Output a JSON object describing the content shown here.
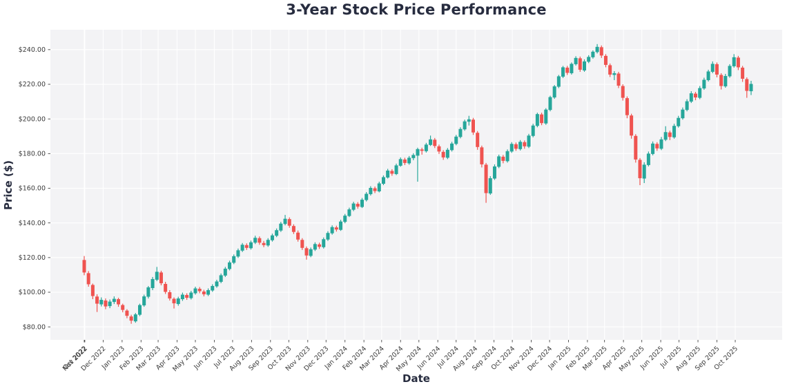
{
  "title": "3-Year Stock Price Performance",
  "chart_data": {
    "type": "candlestick",
    "title": "3-Year Stock Price Performance",
    "xlabel": "Date",
    "ylabel": "Price ($)",
    "interval": "weekly",
    "start_date": "2022-10-31",
    "end_date": "2025-10-27",
    "n_candles": 157,
    "ylim": [
      72.5,
      251.5
    ],
    "grid": true,
    "colors": {
      "up": "#26a69a",
      "down": "#ef5350",
      "plot_bg": "#f3f3f5",
      "grid": "#ffffff",
      "tick": "#444444",
      "tick_text": "#3a3a3a",
      "text": "#272c3f"
    },
    "y_ticks": [
      {
        "label": "$240.00",
        "value": 240
      },
      {
        "label": "$220.00",
        "value": 220
      },
      {
        "label": "$200.00",
        "value": 200
      },
      {
        "label": "$180.00",
        "value": 180
      },
      {
        "label": "$160.00",
        "value": 160
      },
      {
        "label": "$140.00",
        "value": 140
      },
      {
        "label": "$120.00",
        "value": 120
      },
      {
        "label": "$100.00",
        "value": 100
      },
      {
        "label": "$80.00",
        "value": 80
      }
    ],
    "x_ticks": [
      {
        "label": "Oct 2022",
        "week": 0
      },
      {
        "label": "Nov 2022",
        "week": 0.14
      },
      {
        "label": "Dec 2022",
        "week": 4.43
      },
      {
        "label": "Jan 2023",
        "week": 8.86
      },
      {
        "label": "Feb 2023",
        "week": 13.29
      },
      {
        "label": "Mar 2023",
        "week": 17.29
      },
      {
        "label": "Apr 2023",
        "week": 21.71
      },
      {
        "label": "May 2023",
        "week": 26.0
      },
      {
        "label": "Jun 2023",
        "week": 30.43
      },
      {
        "label": "Jul 2023",
        "week": 34.71
      },
      {
        "label": "Aug 2023",
        "week": 39.14
      },
      {
        "label": "Sep 2023",
        "week": 43.57
      },
      {
        "label": "Oct 2023",
        "week": 47.86
      },
      {
        "label": "Nov 2023",
        "week": 52.29
      },
      {
        "label": "Dec 2023",
        "week": 56.57
      },
      {
        "label": "Jan 2024",
        "week": 61.0
      },
      {
        "label": "Feb 2024",
        "week": 65.43
      },
      {
        "label": "Mar 2024",
        "week": 69.57
      },
      {
        "label": "Apr 2024",
        "week": 74.0
      },
      {
        "label": "May 2024",
        "week": 78.29
      },
      {
        "label": "Jun 2024",
        "week": 82.71
      },
      {
        "label": "Jul 2024",
        "week": 87.0
      },
      {
        "label": "Aug 2024",
        "week": 91.43
      },
      {
        "label": "Sep 2024",
        "week": 95.86
      },
      {
        "label": "Oct 2024",
        "week": 100.14
      },
      {
        "label": "Nov 2024",
        "week": 104.57
      },
      {
        "label": "Dec 2024",
        "week": 108.86
      },
      {
        "label": "Jan 2025",
        "week": 113.29
      },
      {
        "label": "Feb 2025",
        "week": 117.71
      },
      {
        "label": "Mar 2025",
        "week": 121.71
      },
      {
        "label": "Apr 2025",
        "week": 126.14
      },
      {
        "label": "May 2025",
        "week": 130.43
      },
      {
        "label": "Jun 2025",
        "week": 134.86
      },
      {
        "label": "Jul 2025",
        "week": 139.14
      },
      {
        "label": "Aug 2025",
        "week": 143.57
      },
      {
        "label": "Sep 2025",
        "week": 148.0
      },
      {
        "label": "Oct 2025",
        "week": 152.29
      }
    ],
    "candles": [
      [
        118.6,
        120.9,
        109.8,
        111.4
      ],
      [
        111.0,
        112.2,
        103.2,
        104.6
      ],
      [
        104.2,
        105.0,
        96.0,
        97.8
      ],
      [
        97.5,
        98.8,
        88.6,
        93.4
      ],
      [
        93.0,
        97.0,
        91.8,
        95.6
      ],
      [
        95.2,
        96.4,
        90.2,
        91.8
      ],
      [
        92.0,
        95.8,
        90.8,
        94.6
      ],
      [
        94.4,
        97.6,
        93.2,
        96.2
      ],
      [
        96.0,
        96.8,
        91.6,
        93.0
      ],
      [
        92.6,
        93.4,
        88.4,
        89.8
      ],
      [
        89.4,
        90.2,
        85.0,
        86.4
      ],
      [
        86.0,
        87.0,
        81.8,
        83.6
      ],
      [
        83.2,
        88.0,
        82.4,
        87.2
      ],
      [
        87.0,
        93.4,
        86.2,
        92.6
      ],
      [
        92.4,
        98.6,
        91.6,
        97.6
      ],
      [
        97.4,
        103.6,
        96.4,
        102.8
      ],
      [
        102.4,
        108.8,
        101.2,
        107.6
      ],
      [
        107.2,
        114.6,
        106.4,
        111.8
      ],
      [
        111.4,
        112.4,
        104.0,
        105.2
      ],
      [
        104.8,
        106.0,
        99.0,
        100.2
      ],
      [
        100.0,
        101.2,
        95.2,
        96.4
      ],
      [
        96.2,
        97.0,
        90.6,
        93.6
      ],
      [
        93.2,
        97.4,
        92.2,
        96.4
      ],
      [
        96.0,
        99.8,
        95.0,
        98.6
      ],
      [
        98.4,
        99.4,
        95.6,
        96.8
      ],
      [
        96.6,
        100.8,
        95.8,
        99.8
      ],
      [
        99.4,
        103.2,
        98.6,
        102.2
      ],
      [
        102.0,
        103.0,
        99.4,
        100.6
      ],
      [
        100.4,
        101.4,
        97.6,
        98.8
      ],
      [
        98.6,
        102.2,
        97.8,
        101.2
      ],
      [
        101.0,
        104.6,
        100.2,
        103.6
      ],
      [
        103.4,
        107.2,
        102.6,
        106.2
      ],
      [
        106.0,
        110.8,
        105.2,
        109.8
      ],
      [
        109.6,
        114.6,
        108.8,
        113.6
      ],
      [
        113.4,
        118.2,
        112.6,
        117.2
      ],
      [
        117.0,
        121.8,
        116.2,
        120.8
      ],
      [
        120.6,
        125.2,
        119.8,
        124.2
      ],
      [
        124.0,
        128.4,
        123.2,
        127.4
      ],
      [
        127.2,
        128.2,
        124.4,
        125.6
      ],
      [
        125.4,
        129.8,
        124.6,
        128.8
      ],
      [
        128.6,
        132.6,
        127.8,
        131.4
      ],
      [
        131.2,
        132.2,
        127.4,
        128.6
      ],
      [
        128.4,
        129.6,
        126.0,
        127.2
      ],
      [
        127.0,
        131.2,
        126.2,
        130.2
      ],
      [
        130.0,
        133.8,
        129.2,
        132.8
      ],
      [
        132.6,
        136.8,
        131.8,
        135.8
      ],
      [
        135.6,
        140.6,
        134.8,
        139.6
      ],
      [
        139.4,
        144.6,
        138.6,
        142.4
      ],
      [
        142.2,
        143.2,
        137.2,
        138.4
      ],
      [
        138.2,
        139.2,
        133.6,
        134.8
      ],
      [
        134.4,
        135.6,
        129.2,
        130.4
      ],
      [
        130.2,
        131.2,
        124.4,
        125.6
      ],
      [
        125.4,
        126.4,
        118.8,
        121.2
      ],
      [
        121.0,
        125.8,
        120.2,
        124.8
      ],
      [
        124.6,
        128.8,
        123.8,
        127.8
      ],
      [
        127.6,
        128.6,
        125.0,
        126.2
      ],
      [
        126.0,
        131.6,
        125.2,
        130.6
      ],
      [
        130.4,
        135.2,
        129.6,
        134.2
      ],
      [
        134.0,
        138.6,
        133.2,
        137.6
      ],
      [
        137.4,
        138.4,
        135.0,
        136.2
      ],
      [
        136.0,
        141.8,
        135.4,
        140.8
      ],
      [
        140.6,
        145.2,
        139.8,
        144.2
      ],
      [
        144.0,
        148.8,
        143.4,
        147.8
      ],
      [
        147.6,
        152.2,
        146.8,
        151.2
      ],
      [
        151.0,
        152.0,
        148.2,
        149.4
      ],
      [
        149.2,
        154.4,
        148.6,
        153.4
      ],
      [
        153.2,
        157.8,
        152.4,
        156.8
      ],
      [
        156.6,
        161.2,
        155.8,
        160.2
      ],
      [
        160.0,
        161.0,
        157.2,
        158.4
      ],
      [
        158.2,
        163.8,
        157.6,
        162.8
      ],
      [
        162.6,
        167.4,
        161.8,
        166.4
      ],
      [
        166.2,
        171.2,
        165.6,
        170.2
      ],
      [
        170.0,
        171.0,
        167.2,
        168.4
      ],
      [
        168.2,
        174.2,
        167.6,
        173.2
      ],
      [
        173.0,
        177.8,
        172.4,
        176.8
      ],
      [
        176.6,
        177.6,
        173.4,
        174.6
      ],
      [
        174.4,
        178.6,
        173.6,
        177.6
      ],
      [
        177.4,
        180.2,
        176.2,
        179.2
      ],
      [
        178.8,
        183.4,
        163.8,
        182.6
      ],
      [
        182.4,
        183.4,
        179.4,
        181.6
      ],
      [
        181.4,
        186.2,
        180.6,
        185.2
      ],
      [
        185.0,
        190.4,
        184.4,
        188.2
      ],
      [
        188.0,
        189.0,
        183.2,
        184.4
      ],
      [
        184.2,
        185.2,
        179.8,
        181.2
      ],
      [
        181.0,
        182.0,
        176.4,
        177.8
      ],
      [
        177.6,
        183.2,
        176.8,
        182.2
      ],
      [
        182.0,
        186.8,
        181.2,
        185.8
      ],
      [
        185.6,
        190.8,
        184.8,
        189.8
      ],
      [
        189.6,
        195.2,
        188.8,
        194.2
      ],
      [
        194.0,
        199.6,
        193.2,
        198.6
      ],
      [
        198.4,
        201.8,
        196.2,
        199.8
      ],
      [
        199.6,
        200.6,
        190.8,
        192.2
      ],
      [
        192.0,
        193.0,
        182.2,
        183.8
      ],
      [
        183.6,
        184.6,
        172.0,
        173.8
      ],
      [
        173.6,
        174.6,
        151.6,
        157.2
      ],
      [
        157.0,
        167.0,
        156.2,
        165.8
      ],
      [
        165.6,
        173.8,
        164.8,
        172.6
      ],
      [
        172.4,
        179.4,
        171.6,
        178.4
      ],
      [
        178.2,
        179.2,
        174.4,
        175.8
      ],
      [
        175.6,
        182.4,
        174.8,
        181.4
      ],
      [
        181.2,
        186.6,
        180.4,
        185.6
      ],
      [
        185.4,
        186.4,
        181.6,
        182.8
      ],
      [
        182.6,
        187.8,
        181.8,
        186.8
      ],
      [
        186.6,
        187.6,
        182.8,
        184.2
      ],
      [
        184.0,
        191.4,
        183.2,
        190.4
      ],
      [
        190.2,
        197.2,
        189.4,
        196.2
      ],
      [
        196.0,
        203.6,
        195.2,
        202.8
      ],
      [
        202.6,
        203.6,
        196.4,
        197.6
      ],
      [
        197.4,
        206.2,
        196.6,
        205.4
      ],
      [
        205.2,
        213.4,
        204.4,
        212.6
      ],
      [
        212.4,
        219.6,
        211.6,
        218.8
      ],
      [
        218.6,
        225.4,
        217.8,
        224.6
      ],
      [
        224.4,
        230.6,
        223.6,
        229.8
      ],
      [
        229.6,
        230.6,
        225.4,
        226.6
      ],
      [
        226.4,
        232.6,
        225.6,
        231.8
      ],
      [
        231.6,
        236.2,
        230.8,
        235.2
      ],
      [
        235.0,
        236.0,
        227.2,
        228.4
      ],
      [
        228.0,
        234.4,
        227.2,
        233.2
      ],
      [
        233.0,
        236.8,
        232.2,
        235.8
      ],
      [
        235.6,
        239.6,
        234.8,
        238.8
      ],
      [
        238.6,
        243.2,
        237.8,
        241.6
      ],
      [
        241.4,
        242.4,
        235.2,
        236.6
      ],
      [
        236.4,
        237.4,
        229.8,
        231.2
      ],
      [
        231.0,
        232.0,
        224.2,
        225.6
      ],
      [
        225.4,
        227.6,
        222.4,
        226.4
      ],
      [
        226.2,
        227.2,
        217.8,
        219.2
      ],
      [
        219.0,
        220.0,
        210.6,
        212.2
      ],
      [
        212.0,
        213.0,
        200.4,
        202.2
      ],
      [
        202.0,
        203.0,
        188.6,
        190.4
      ],
      [
        190.2,
        191.2,
        174.8,
        176.6
      ],
      [
        176.4,
        177.4,
        161.8,
        165.8
      ],
      [
        165.6,
        175.0,
        163.0,
        173.6
      ],
      [
        173.4,
        181.2,
        172.6,
        180.0
      ],
      [
        179.8,
        187.0,
        179.0,
        185.8
      ],
      [
        185.6,
        186.6,
        181.6,
        183.0
      ],
      [
        182.8,
        189.6,
        182.0,
        188.2
      ],
      [
        188.0,
        195.8,
        187.2,
        192.4
      ],
      [
        192.2,
        193.2,
        187.8,
        189.6
      ],
      [
        189.4,
        197.2,
        188.6,
        196.0
      ],
      [
        195.8,
        201.8,
        195.0,
        200.6
      ],
      [
        200.4,
        206.6,
        199.6,
        205.4
      ],
      [
        205.2,
        211.4,
        204.4,
        210.2
      ],
      [
        210.0,
        216.0,
        209.2,
        214.8
      ],
      [
        214.6,
        215.6,
        210.8,
        212.4
      ],
      [
        212.2,
        219.0,
        211.4,
        217.8
      ],
      [
        217.6,
        223.8,
        216.8,
        222.6
      ],
      [
        222.4,
        228.4,
        221.6,
        227.4
      ],
      [
        227.2,
        233.2,
        226.4,
        231.8
      ],
      [
        231.6,
        232.6,
        224.0,
        225.6
      ],
      [
        225.4,
        226.4,
        217.0,
        219.0
      ],
      [
        218.8,
        226.0,
        218.0,
        224.8
      ],
      [
        224.6,
        231.6,
        223.8,
        230.6
      ],
      [
        230.4,
        237.4,
        229.6,
        235.6
      ],
      [
        235.4,
        236.4,
        228.2,
        229.8
      ],
      [
        229.6,
        230.6,
        221.4,
        223.2
      ],
      [
        223.0,
        224.0,
        212.2,
        216.2
      ],
      [
        216.0,
        222.0,
        213.8,
        220.2
      ]
    ]
  }
}
